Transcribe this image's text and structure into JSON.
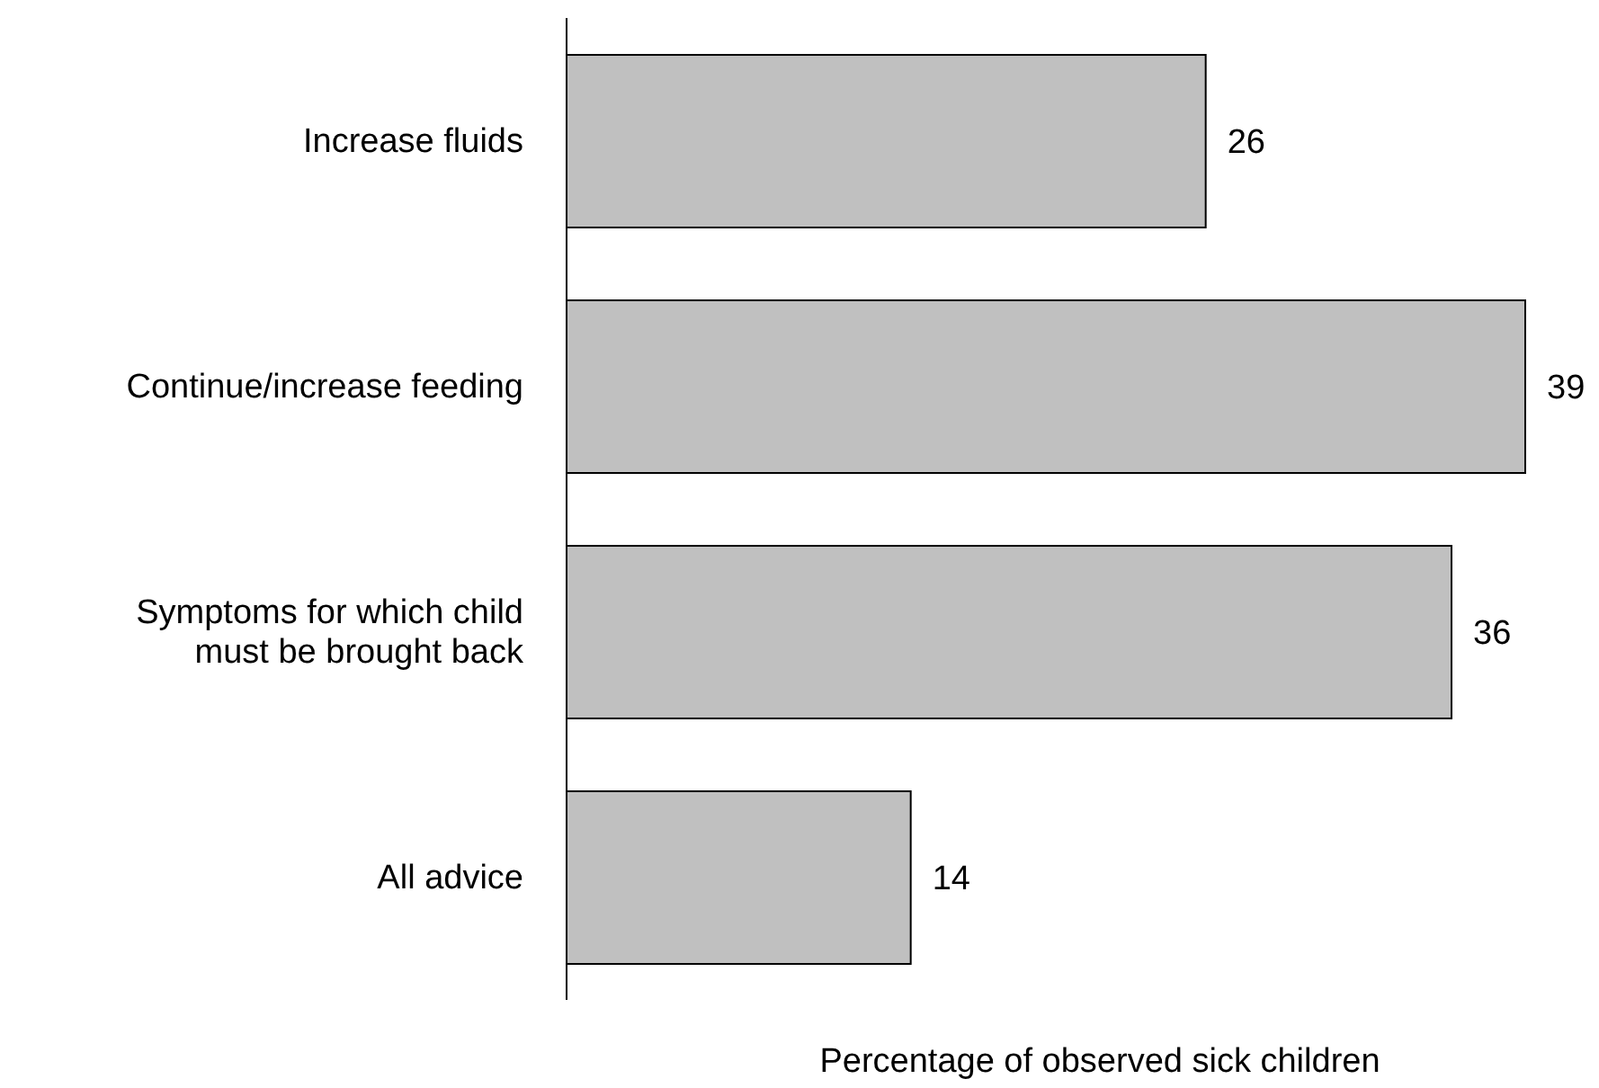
{
  "chart_data": {
    "type": "bar",
    "orientation": "horizontal",
    "categories": [
      "Increase fluids",
      "Continue/increase feeding",
      "Symptoms for which child must be brought back",
      "All advice"
    ],
    "values": [
      26,
      39,
      36,
      14
    ],
    "color": "#c0c0c0",
    "xlabel": "Percentage of observed sick children",
    "data_labels": true
  }
}
